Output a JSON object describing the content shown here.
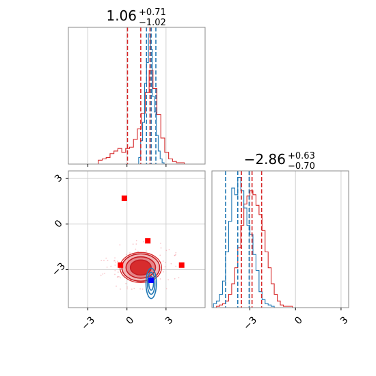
{
  "chart_data": [
    {
      "panel": "top-left",
      "type": "histogram",
      "title": {
        "value": "1.06",
        "plus": "+0.71",
        "minus": "−1.02"
      },
      "xlim": [
        -4.5,
        6.0
      ],
      "xticks": [
        -3,
        0,
        3
      ],
      "show_x_ticklabels": false,
      "grid": true,
      "series": [
        {
          "color": "#d62728",
          "bin_edges": [
            -2.2,
            -1.9,
            -1.6,
            -1.3,
            -1.0,
            -0.7,
            -0.4,
            -0.1,
            0.2,
            0.5,
            0.8,
            1.1,
            1.4,
            1.7,
            2.0,
            2.3,
            2.6,
            2.9,
            3.2,
            3.5,
            3.8,
            4.1,
            4.4
          ],
          "counts": [
            0.03,
            0.04,
            0.05,
            0.08,
            0.1,
            0.12,
            0.09,
            0.12,
            0.13,
            0.19,
            0.27,
            0.39,
            0.55,
            0.72,
            0.58,
            0.38,
            0.2,
            0.09,
            0.04,
            0.02,
            0.01,
            0.01
          ]
        },
        {
          "color": "#1f77b4",
          "bin_edges": [
            0.9,
            1.05,
            1.2,
            1.35,
            1.5,
            1.65,
            1.8,
            1.95,
            2.1,
            2.25,
            2.4,
            2.55,
            2.7,
            2.85
          ],
          "counts": [
            0.05,
            0.18,
            0.32,
            0.62,
            0.78,
            1.0,
            0.88,
            0.52,
            0.4,
            0.22,
            0.1,
            0.04,
            0.01
          ]
        }
      ],
      "quantile_lines": [
        {
          "color": "#d62728",
          "values": [
            0.04,
            1.06,
            1.77
          ]
        },
        {
          "color": "#1f77b4",
          "values": [
            1.5,
            1.86,
            2.22
          ]
        }
      ]
    },
    {
      "panel": "bottom-left",
      "type": "2d-density-contour",
      "xlim": [
        -4.5,
        6.0
      ],
      "ylim": [
        -5.5,
        3.5
      ],
      "xticks": [
        -3,
        0,
        3
      ],
      "yticks": [
        -3,
        0,
        3
      ],
      "grid": true,
      "series": [
        {
          "color": "#d62728",
          "style": "filled-contours",
          "center": [
            1.06,
            -2.86
          ],
          "spread": [
            1.45,
            0.9
          ]
        },
        {
          "color": "#1f77b4",
          "style": "line-contours",
          "center": [
            1.86,
            -3.9
          ],
          "spread": [
            0.4,
            1.0
          ]
        }
      ],
      "markers": [
        {
          "color": "#ff0000",
          "x": -0.2,
          "y": 1.7
        },
        {
          "color": "#ff0000",
          "x": 1.6,
          "y": -1.1
        },
        {
          "color": "#ff0000",
          "x": -0.5,
          "y": -2.7
        },
        {
          "color": "#ff0000",
          "x": 4.2,
          "y": -2.7
        },
        {
          "color": "#0000ff",
          "x": 1.85,
          "y": -3.7
        }
      ]
    },
    {
      "panel": "bottom-right",
      "type": "histogram",
      "title": {
        "value": "−2.86",
        "plus": "+0.63",
        "minus": "−0.70"
      },
      "xlim": [
        -5.5,
        3.5
      ],
      "xticks": [
        -3,
        0,
        3
      ],
      "grid": true,
      "series": [
        {
          "color": "#d62728",
          "bin_edges": [
            -5.2,
            -5.0,
            -4.8,
            -4.6,
            -4.4,
            -4.2,
            -4.0,
            -3.8,
            -3.6,
            -3.4,
            -3.2,
            -3.0,
            -2.8,
            -2.6,
            -2.4,
            -2.2,
            -2.0,
            -1.8,
            -1.6,
            -1.4,
            -1.2,
            -1.0,
            -0.8,
            -0.6,
            -0.4,
            -0.2
          ],
          "counts": [
            0.01,
            0.02,
            0.03,
            0.05,
            0.1,
            0.18,
            0.3,
            0.45,
            0.62,
            0.78,
            0.84,
            0.88,
            0.85,
            0.77,
            0.7,
            0.58,
            0.42,
            0.3,
            0.18,
            0.1,
            0.05,
            0.02,
            0.01,
            0.01,
            0.01
          ]
        },
        {
          "color": "#1f77b4",
          "bin_edges": [
            -5.4,
            -5.2,
            -5.0,
            -4.8,
            -4.6,
            -4.4,
            -4.2,
            -4.0,
            -3.8,
            -3.6,
            -3.4,
            -3.2,
            -3.0,
            -2.8,
            -2.6,
            -2.4,
            -2.2,
            -2.0,
            -1.8,
            -1.6,
            -1.4
          ],
          "counts": [
            0.03,
            0.05,
            0.1,
            0.2,
            0.42,
            0.65,
            0.9,
            0.85,
            0.98,
            0.88,
            0.75,
            0.62,
            0.55,
            0.4,
            0.28,
            0.12,
            0.06,
            0.03,
            0.02,
            0.01
          ]
        }
      ],
      "quantile_lines": [
        {
          "color": "#d62728",
          "values": [
            -3.56,
            -2.86,
            -2.23
          ]
        },
        {
          "color": "#1f77b4",
          "values": [
            -4.6,
            -3.8,
            -3.05
          ]
        }
      ]
    }
  ]
}
